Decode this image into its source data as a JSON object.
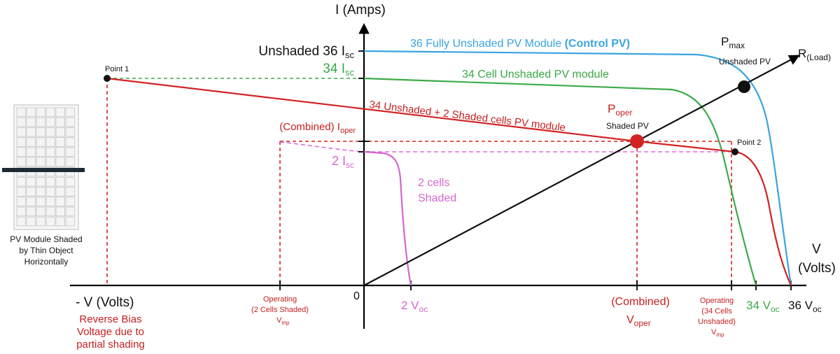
{
  "axes": {
    "y_label": "I (Amps)",
    "x_label_right_1": "V",
    "x_label_right_2": "(Volts)",
    "x_label_left": "- V (Volts)",
    "origin": "0"
  },
  "module_image": {
    "caption_1": "PV Module Shaded",
    "caption_2": "by Thin Object",
    "caption_3": "Horizontally"
  },
  "y_ticks": {
    "isc36_prefix": "Unshaded 36 I",
    "isc36_sub": "sc",
    "isc34_prefix": "34 I",
    "isc34_sub": "sc",
    "ioper_prefix": "(Combined) I",
    "ioper_sub": "oper",
    "isc2_prefix": "2 I",
    "isc2_sub": "sc"
  },
  "curves": {
    "full_prefix": "36 Fully Unshaded PV Module ",
    "full_bold": "(Control PV)",
    "cell34": "34 Cell Unshaded PV module",
    "combined": "34 Unshaded + 2 Shaded cells PV module",
    "shaded_1": "2 cells",
    "shaded_2": "Shaded"
  },
  "points": {
    "point1": "Point 1",
    "point2": "Point 2",
    "pmax_main": "P",
    "pmax_sub": "max",
    "pmax_note": "Unshaded PV",
    "poper_main": "P",
    "poper_sub": "oper",
    "poper_note": "Shaded PV",
    "rload_main": "R",
    "rload_sub": "(Load)"
  },
  "x_ticks": {
    "voc2_prefix": "2 V",
    "voc2_sub": "oc",
    "voc34_prefix": "34 V",
    "voc34_sub": "oc",
    "voc36_prefix": "36 V",
    "voc36_sub": "oc",
    "vop2_1": "Operating",
    "vop2_2": "(2 Cells Shaded)",
    "vop2_3": "V",
    "vop2_sub": "mp",
    "voper_1": "(Combined)",
    "voper_2": "V",
    "voper_sub": "oper",
    "vop34_1": "Operating",
    "vop34_2": "(34 Cells",
    "vop34_3": "Unshaded)",
    "vop34_4": "V",
    "vop34_sub": "mp",
    "reverse_1": "Reverse Bias",
    "reverse_2": "Voltage due to",
    "reverse_3": "partial shading"
  },
  "colors": {
    "full": "#3aa4df",
    "cell34": "#3cab4a",
    "combined": "#d22323",
    "shaded": "#d766d0",
    "load": "#111111"
  }
}
